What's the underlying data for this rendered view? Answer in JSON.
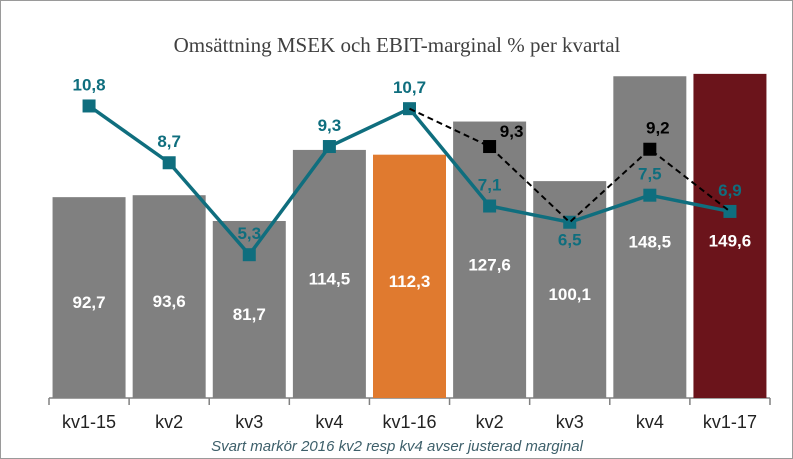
{
  "chart_data": {
    "type": "bar-line",
    "title": "Omsättning MSEK och EBIT-marginal % per kvartal",
    "footnote": "Svart markör 2016 kv2 resp kv4 avser justerad marginal",
    "categories": [
      "kv1-15",
      "kv2",
      "kv3",
      "kv4",
      "kv1-16",
      "kv2",
      "kv3",
      "kv4",
      "kv1-17"
    ],
    "ylim": [
      0,
      156
    ],
    "y2lim": [
      0,
      12.5
    ],
    "series": [
      {
        "type": "bar",
        "values": [
          92.7,
          93.6,
          81.7,
          114.5,
          112.3,
          127.6,
          100.1,
          148.5,
          149.6
        ],
        "value_labels": [
          "92,7",
          "93,6",
          "81,7",
          "114,5",
          "112,3",
          "127,6",
          "100,1",
          "148,5",
          "149,6"
        ],
        "colors": [
          "#808080",
          "#808080",
          "#808080",
          "#808080",
          "#e07a2f",
          "#808080",
          "#808080",
          "#808080",
          "#6b141b"
        ]
      },
      {
        "type": "line",
        "axis": "y2",
        "color": "#0f6e7e",
        "values": [
          10.8,
          8.7,
          5.3,
          9.3,
          10.7,
          7.1,
          6.5,
          7.5,
          6.9
        ],
        "value_labels": [
          "10,8",
          "8,7",
          "5,3",
          "9,3",
          "10,7",
          "7,1",
          "6,5",
          "7,5",
          "6,9"
        ]
      },
      {
        "type": "line",
        "axis": "y2",
        "color": "#000000",
        "dashed": true,
        "values": [
          null,
          null,
          null,
          null,
          10.7,
          9.3,
          6.5,
          9.2,
          6.9
        ],
        "value_labels": [
          null,
          null,
          null,
          null,
          null,
          "9,3",
          null,
          "9,2",
          null
        ]
      }
    ]
  }
}
